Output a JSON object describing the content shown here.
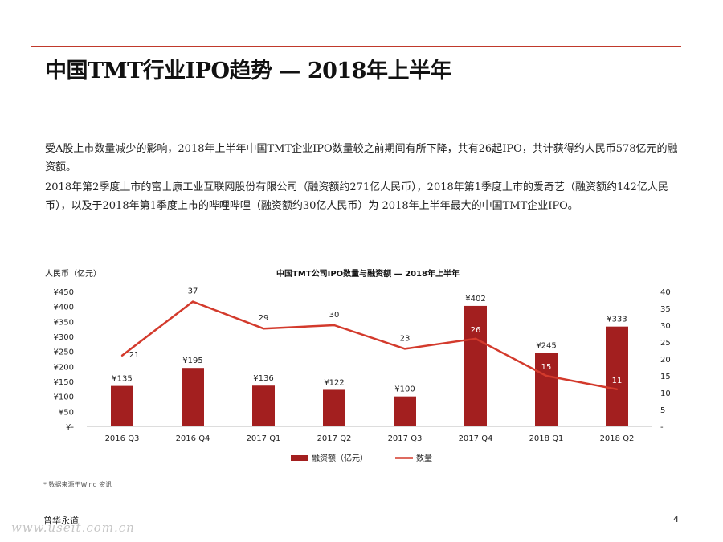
{
  "title": "中国TMT行业IPO趋势 — 2018年上半年",
  "paragraphs": [
    "受A股上市数量减少的影响，2018年上半年中国TMT企业IPO数量较之前期间有所下降，共有26起IPO，共计获得约人民币578亿元的融资额。",
    "2018年第2季度上市的富士康工业互联网股份有限公司（融资额约271亿人民币），2018年第1季度上市的爱奇艺（融资额约142亿人民币），以及于2018年第1季度上市的哔哩哔哩（融资额约30亿人民币）为 2018年上半年最大的中国TMT企业IPO。"
  ],
  "chart_data": {
    "type": "bar+line",
    "title": "中国TMT公司IPO数量与融资额 — 2018年上半年",
    "ylabel_left": "人民币（亿元）",
    "categories": [
      "2016 Q3",
      "2016 Q4",
      "2017 Q1",
      "2017 Q2",
      "2017 Q3",
      "2017 Q4",
      "2018 Q1",
      "2018 Q2"
    ],
    "series": [
      {
        "name": "融资额（亿元）",
        "kind": "bar",
        "axis": "left",
        "values": [
          135,
          195,
          136,
          122,
          100,
          402,
          245,
          333
        ],
        "labels": [
          "¥135",
          "¥195",
          "¥136",
          "¥122",
          "¥100",
          "¥402",
          "¥245",
          "¥333"
        ]
      },
      {
        "name": "数量",
        "kind": "line",
        "axis": "right",
        "values": [
          21,
          37,
          29,
          30,
          23,
          26,
          15,
          11
        ],
        "labels": [
          "21",
          "37",
          "29",
          "30",
          "23",
          "26",
          "15",
          "11"
        ]
      }
    ],
    "left_axis": {
      "ylim": [
        0,
        450
      ],
      "ticks": [
        0,
        50,
        100,
        150,
        200,
        250,
        300,
        350,
        400,
        450
      ],
      "tick_labels": [
        "¥-",
        "¥50",
        "¥100",
        "¥150",
        "¥200",
        "¥250",
        "¥300",
        "¥350",
        "¥400",
        "¥450"
      ]
    },
    "right_axis": {
      "ylim": [
        0,
        40
      ],
      "ticks": [
        0,
        5,
        10,
        15,
        20,
        25,
        30,
        35,
        40
      ],
      "tick_labels": [
        "-",
        "5",
        "10",
        "15",
        "20",
        "25",
        "30",
        "35",
        "40"
      ]
    },
    "colors": {
      "bar": "#a31f1f",
      "line": "#d33a2c"
    },
    "legend": "bottom"
  },
  "footnote": "* 数据来源于Wind 资讯",
  "footer": {
    "brand": "普华永道",
    "page": "4"
  },
  "watermark": "www.useit.com.cn"
}
